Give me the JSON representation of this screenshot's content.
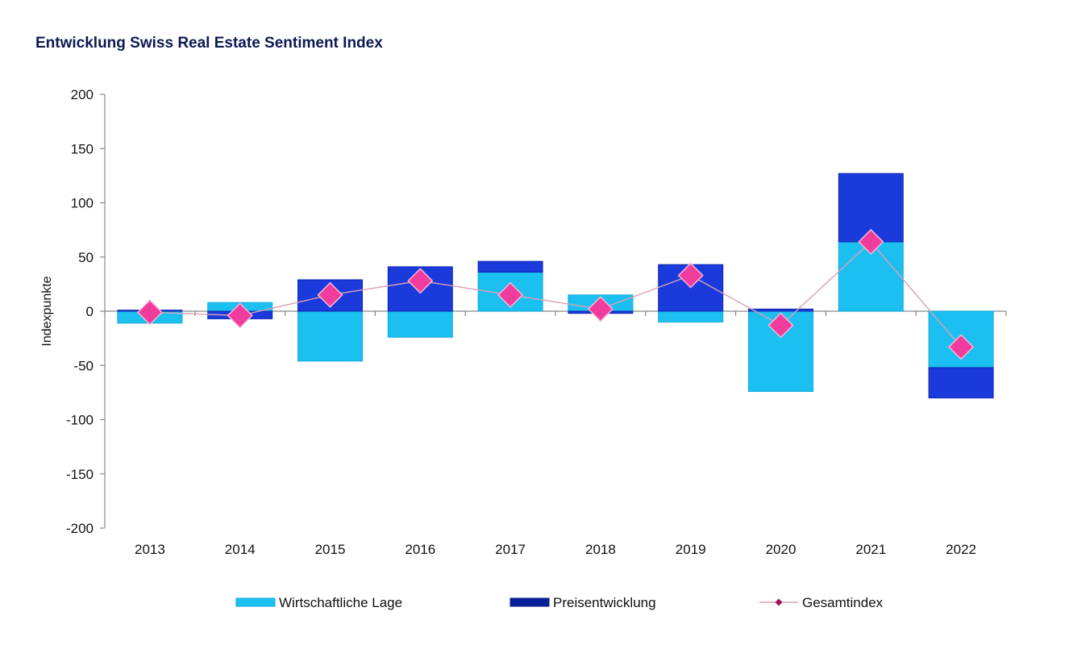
{
  "chart_data": {
    "type": "bar",
    "title": "Entwicklung Swiss Real Estate Sentiment Index",
    "xlabel": "",
    "ylabel": "Indexpunkte",
    "ylim": [
      -200,
      200
    ],
    "yticks": [
      200,
      150,
      100,
      50,
      0,
      -50,
      -100,
      -150,
      -200
    ],
    "grid": false,
    "legend_position": "bottom",
    "categories": [
      "2013",
      "2014",
      "2015",
      "2016",
      "2017",
      "2018",
      "2019",
      "2020",
      "2021",
      "2022"
    ],
    "series": [
      {
        "name": "Wirtschaftliche Lage",
        "type": "bar-stacked",
        "color": "#1cc0f0",
        "values": [
          -11,
          8,
          -46,
          -24,
          36,
          15,
          -10,
          -74,
          64,
          -52
        ]
      },
      {
        "name": "Preisentwicklung",
        "type": "bar-stacked",
        "color": "#1a3adb",
        "values": [
          1,
          -7,
          29,
          41,
          10,
          -2,
          43,
          2,
          63,
          -28
        ]
      },
      {
        "name": "Gesamtindex",
        "type": "line-marker",
        "color": "#f03c9c",
        "line_color": "#d9a0b8",
        "values": [
          -1,
          -4,
          15,
          28,
          15,
          2,
          33,
          -13,
          64,
          -33
        ]
      }
    ]
  }
}
